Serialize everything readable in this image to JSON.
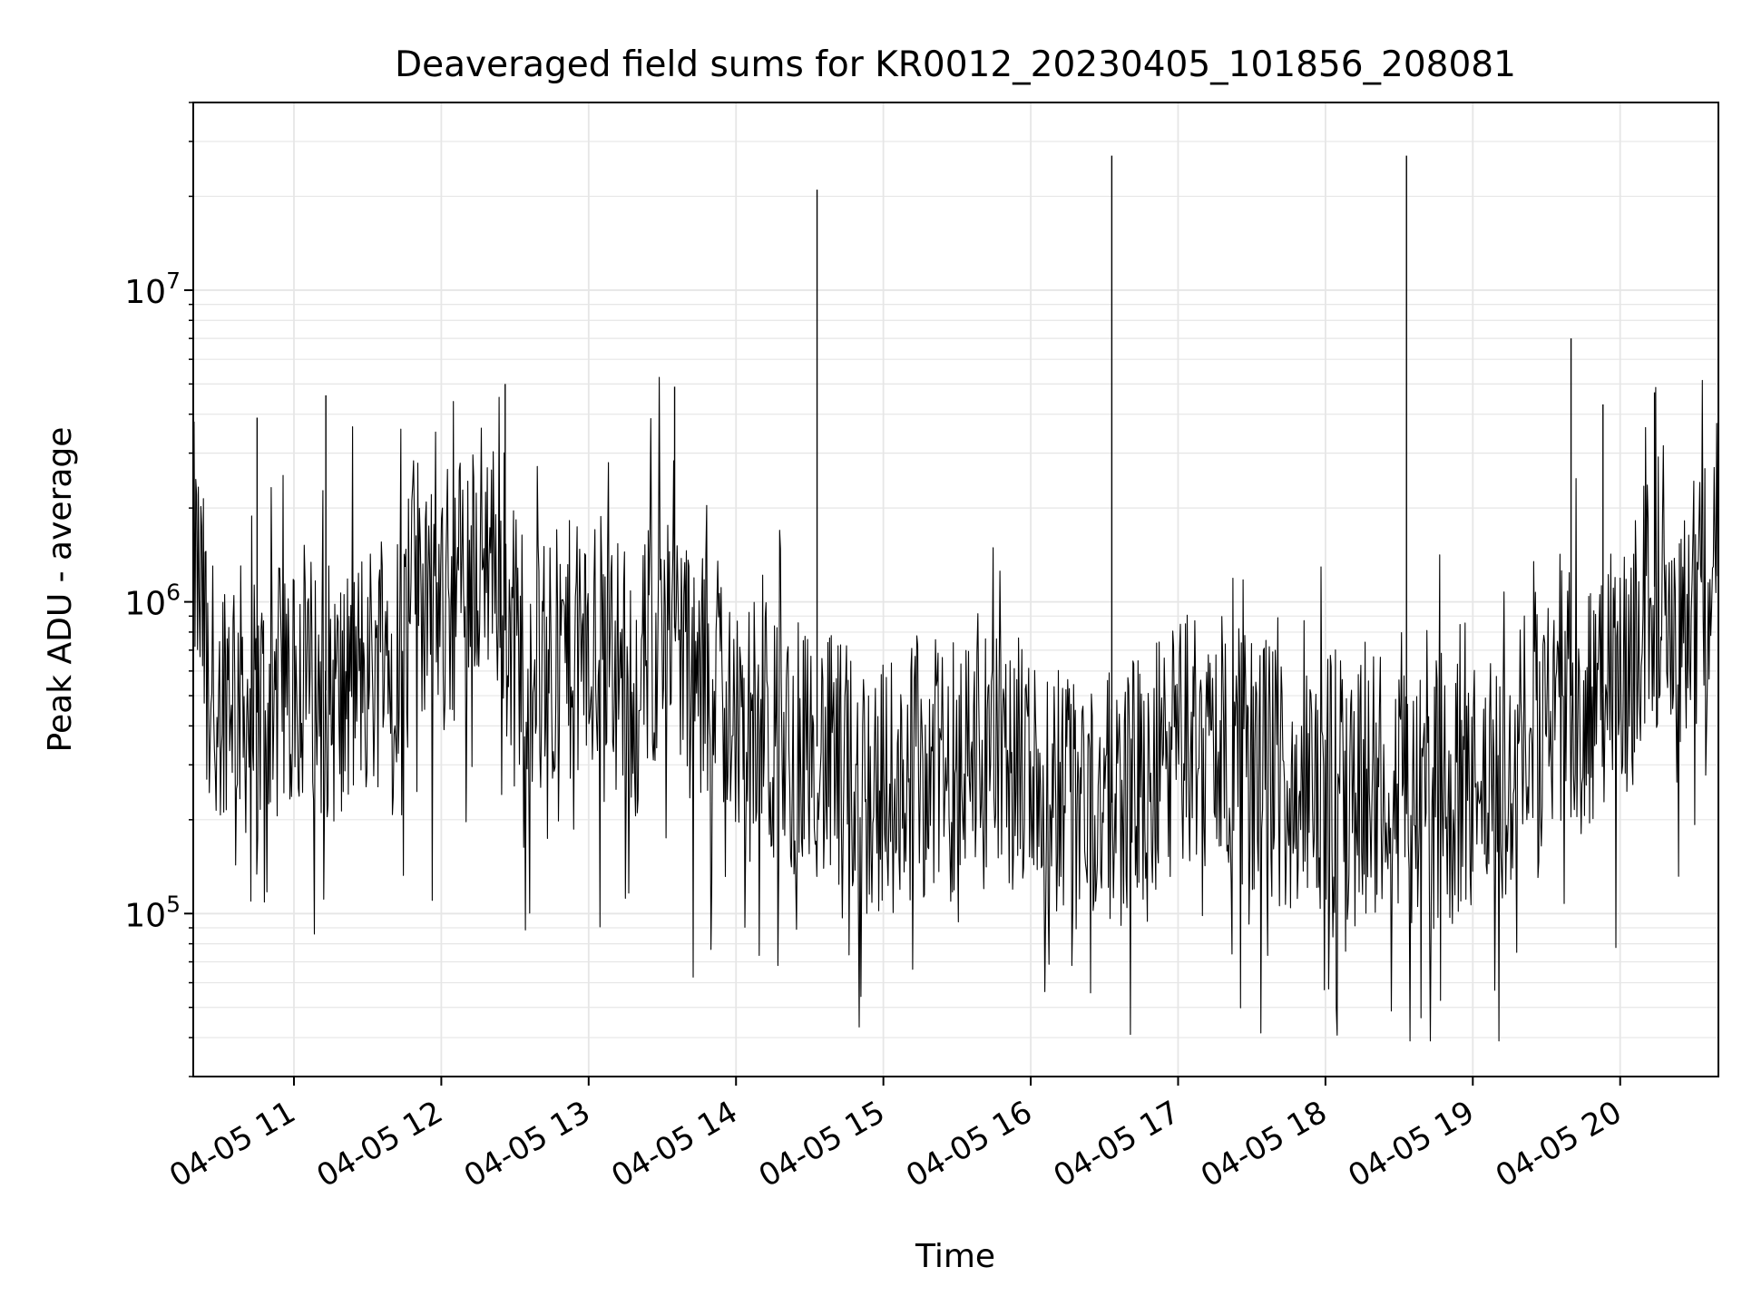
{
  "chart_data": {
    "type": "line",
    "title": "Deaveraged field sums for KR0012_20230405_101856_208081",
    "xlabel": "Time",
    "ylabel": "Peak ADU - average",
    "yscale": "log",
    "ylim": [
      30000,
      40000000
    ],
    "xlim": [
      "2023-04-05 10:19",
      "2023-04-05 20:40"
    ],
    "grid": true,
    "x_ticks": [
      "04-05 11",
      "04-05 12",
      "04-05 13",
      "04-05 14",
      "04-05 15",
      "04-05 16",
      "04-05 17",
      "04-05 18",
      "04-05 19",
      "04-05 20"
    ],
    "y_ticks": [
      {
        "base": "10",
        "exp": "5",
        "value": 100000
      },
      {
        "base": "10",
        "exp": "6",
        "value": 1000000
      },
      {
        "base": "10",
        "exp": "7",
        "value": 10000000
      }
    ],
    "line_color": "#000000",
    "grid_color": "#e6e6e6",
    "series": [
      {
        "x": [
          "10:19",
          "10:27",
          "10:35",
          "10:42",
          "10:50",
          "10:57",
          "11:05",
          "11:13",
          "11:20",
          "11:28",
          "11:35",
          "11:43",
          "11:50",
          "11:58",
          "12:06",
          "12:13",
          "12:21",
          "12:28",
          "12:36",
          "12:44",
          "12:51",
          "12:59",
          "13:06",
          "13:14",
          "13:21",
          "13:29",
          "13:37",
          "13:44",
          "13:52",
          "13:59",
          "14:07",
          "14:15",
          "14:22",
          "14:30",
          "14:37",
          "14:45",
          "14:52",
          "15:00",
          "15:08",
          "15:15",
          "15:23",
          "15:30",
          "15:38",
          "15:46",
          "15:53",
          "16:01",
          "16:08",
          "16:16",
          "16:23",
          "16:31",
          "16:39",
          "16:46",
          "16:54",
          "17:01",
          "17:09",
          "17:17",
          "17:24",
          "17:32",
          "17:39",
          "17:47",
          "17:54",
          "18:02",
          "18:10",
          "18:17",
          "18:25",
          "18:32",
          "18:40",
          "18:48",
          "18:55",
          "19:03",
          "19:10",
          "19:18",
          "19:25",
          "19:33",
          "19:41",
          "19:48",
          "19:56",
          "20:03",
          "20:11",
          "20:18",
          "20:26",
          "20:33",
          "20:40"
        ],
        "y": [
          1500000,
          500000,
          600000,
          420000,
          480000,
          520000,
          550000,
          520000,
          480000,
          600000,
          650000,
          800000,
          1200000,
          1000000,
          1100000,
          1400000,
          1500000,
          800000,
          700000,
          600000,
          700000,
          650000,
          750000,
          600000,
          550000,
          900000,
          800000,
          500000,
          650000,
          450000,
          380000,
          350000,
          320000,
          380000,
          300000,
          280000,
          260000,
          250000,
          270000,
          300000,
          280000,
          320000,
          350000,
          330000,
          300000,
          280000,
          260000,
          240000,
          230000,
          220000,
          250000,
          270000,
          300000,
          350000,
          380000,
          360000,
          320000,
          300000,
          280000,
          260000,
          240000,
          260000,
          280000,
          300000,
          270000,
          250000,
          240000,
          230000,
          240000,
          250000,
          260000,
          300000,
          400000,
          500000,
          500000,
          450000,
          550000,
          600000,
          1000000,
          1300000,
          800000,
          1200000,
          1500000
        ]
      }
    ],
    "spikes": [
      {
        "x": "10:45",
        "y": 3900000
      },
      {
        "x": "11:13",
        "y": 4600000
      },
      {
        "x": "12:26",
        "y": 5000000
      },
      {
        "x": "13:35",
        "y": 4900000
      },
      {
        "x": "14:33",
        "y": 21000000
      },
      {
        "x": "16:33",
        "y": 27000000
      },
      {
        "x": "18:33",
        "y": 27000000
      },
      {
        "x": "19:40",
        "y": 7000000
      },
      {
        "x": "19:53",
        "y": 4300000
      },
      {
        "x": "20:14",
        "y": 4700000
      }
    ]
  }
}
